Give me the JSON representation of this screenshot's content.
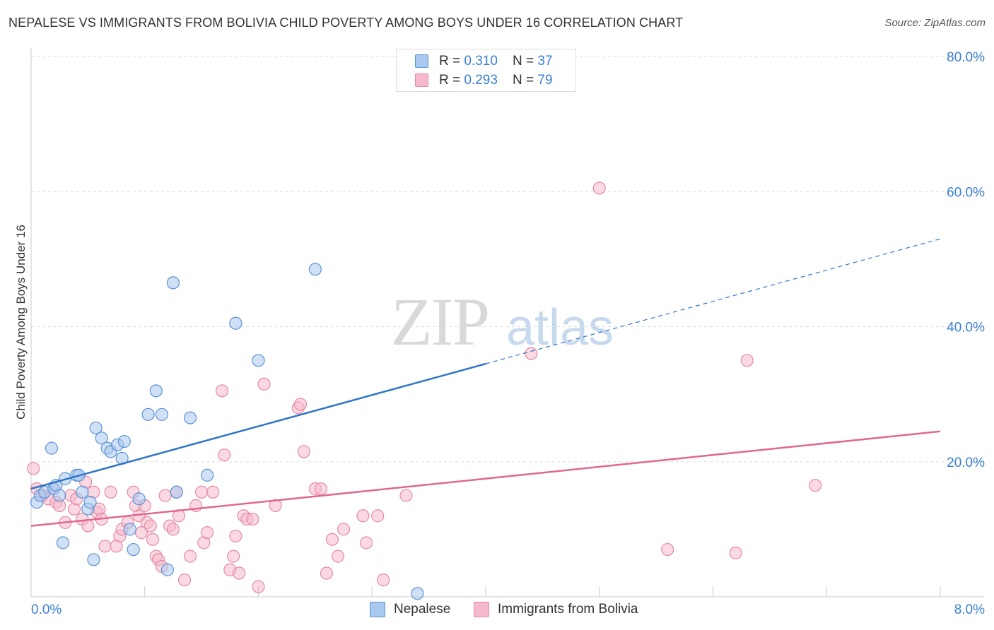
{
  "title": "NEPALESE VS IMMIGRANTS FROM BOLIVIA CHILD POVERTY AMONG BOYS UNDER 16 CORRELATION CHART",
  "source": "Source: ZipAtlas.com",
  "watermark": {
    "part1": "ZIP",
    "part2": "atlas"
  },
  "colors": {
    "blue_fill": "#a9c8ef",
    "blue_stroke": "#5b93d6",
    "blue_line": "#2e74c9",
    "pink_fill": "#f5b9cb",
    "pink_stroke": "#e58aa8",
    "pink_line": "#e0678f",
    "grid": "#dddddd",
    "axis_text": "#3a7fd5"
  },
  "legend_top": [
    {
      "series": "blue",
      "r_label": "R = ",
      "r_value": "0.310",
      "n_label": "N = ",
      "n_value": "37"
    },
    {
      "series": "pink",
      "r_label": "R = ",
      "r_value": "0.293",
      "n_label": "N = ",
      "n_value": "79"
    }
  ],
  "legend_bottom": [
    "Nepalese",
    "Immigrants from Bolivia"
  ],
  "chart_data": {
    "type": "scatter",
    "title": "NEPALESE VS IMMIGRANTS FROM BOLIVIA CHILD POVERTY AMONG BOYS UNDER 16 CORRELATION CHART",
    "xlabel": "",
    "ylabel": "Child Poverty Among Boys Under 16",
    "xlim": [
      0,
      8
    ],
    "ylim": [
      0,
      80
    ],
    "x_tick_labels": [
      {
        "value": 0,
        "label": "0.0%"
      },
      {
        "value": 8,
        "label": "8.0%"
      }
    ],
    "y_tick_labels": [
      {
        "value": 20,
        "label": "20.0%"
      },
      {
        "value": 40,
        "label": "40.0%"
      },
      {
        "value": 60,
        "label": "60.0%"
      },
      {
        "value": 80,
        "label": "80.0%"
      }
    ],
    "grid": true,
    "legend_position": "top-center",
    "series": [
      {
        "name": "Nepalese",
        "color": "blue",
        "R": 0.31,
        "N": 37,
        "trend": {
          "x0": 0,
          "y0": 16.0,
          "x_solid_end": 4.0,
          "x_end": 8.0,
          "y_end": 53.0
        },
        "points": [
          [
            0.05,
            14.0
          ],
          [
            0.08,
            15.0
          ],
          [
            0.12,
            15.5
          ],
          [
            0.18,
            22.0
          ],
          [
            0.2,
            16.0
          ],
          [
            0.22,
            16.5
          ],
          [
            0.25,
            15.0
          ],
          [
            0.28,
            8.0
          ],
          [
            0.3,
            17.5
          ],
          [
            0.4,
            18.0
          ],
          [
            0.42,
            18.0
          ],
          [
            0.45,
            15.5
          ],
          [
            0.5,
            13.0
          ],
          [
            0.52,
            14.0
          ],
          [
            0.55,
            5.5
          ],
          [
            0.57,
            25.0
          ],
          [
            0.62,
            23.5
          ],
          [
            0.67,
            22.0
          ],
          [
            0.7,
            21.5
          ],
          [
            0.76,
            22.5
          ],
          [
            0.8,
            20.5
          ],
          [
            0.82,
            23.0
          ],
          [
            0.87,
            10.0
          ],
          [
            0.9,
            7.0
          ],
          [
            0.95,
            14.5
          ],
          [
            1.03,
            27.0
          ],
          [
            1.1,
            30.5
          ],
          [
            1.15,
            27.0
          ],
          [
            1.2,
            4.0
          ],
          [
            1.25,
            46.5
          ],
          [
            1.28,
            15.5
          ],
          [
            1.4,
            26.5
          ],
          [
            1.55,
            18.0
          ],
          [
            1.8,
            40.5
          ],
          [
            2.0,
            35.0
          ],
          [
            2.5,
            48.5
          ],
          [
            3.4,
            0.5
          ]
        ]
      },
      {
        "name": "Immigrants from Bolivia",
        "color": "pink",
        "R": 0.293,
        "N": 79,
        "trend": {
          "x0": 0,
          "y0": 10.5,
          "x_end": 8.0,
          "y_end": 24.5
        },
        "points": [
          [
            0.02,
            19.0
          ],
          [
            0.05,
            16.0
          ],
          [
            0.1,
            15.0
          ],
          [
            0.15,
            14.5
          ],
          [
            0.2,
            16.0
          ],
          [
            0.22,
            14.0
          ],
          [
            0.25,
            13.5
          ],
          [
            0.3,
            11.0
          ],
          [
            0.35,
            15.0
          ],
          [
            0.38,
            13.0
          ],
          [
            0.4,
            14.5
          ],
          [
            0.45,
            11.5
          ],
          [
            0.48,
            17.0
          ],
          [
            0.5,
            10.5
          ],
          [
            0.55,
            15.5
          ],
          [
            0.58,
            12.5
          ],
          [
            0.6,
            13.0
          ],
          [
            0.62,
            11.5
          ],
          [
            0.65,
            7.5
          ],
          [
            0.7,
            15.5
          ],
          [
            0.75,
            7.5
          ],
          [
            0.78,
            9.0
          ],
          [
            0.8,
            10.0
          ],
          [
            0.85,
            11.0
          ],
          [
            0.9,
            15.5
          ],
          [
            0.92,
            13.5
          ],
          [
            0.95,
            12.0
          ],
          [
            0.97,
            9.5
          ],
          [
            1.0,
            13.5
          ],
          [
            1.02,
            11.0
          ],
          [
            1.05,
            10.5
          ],
          [
            1.07,
            8.5
          ],
          [
            1.1,
            6.0
          ],
          [
            1.12,
            5.5
          ],
          [
            1.15,
            4.5
          ],
          [
            1.18,
            15.0
          ],
          [
            1.22,
            10.5
          ],
          [
            1.25,
            10.0
          ],
          [
            1.28,
            15.5
          ],
          [
            1.3,
            12.0
          ],
          [
            1.35,
            2.5
          ],
          [
            1.4,
            6.0
          ],
          [
            1.45,
            13.5
          ],
          [
            1.5,
            15.5
          ],
          [
            1.52,
            8.0
          ],
          [
            1.55,
            9.5
          ],
          [
            1.6,
            15.5
          ],
          [
            1.68,
            30.5
          ],
          [
            1.7,
            21.0
          ],
          [
            1.75,
            4.0
          ],
          [
            1.78,
            6.0
          ],
          [
            1.8,
            9.0
          ],
          [
            1.83,
            3.5
          ],
          [
            1.87,
            12.0
          ],
          [
            1.9,
            11.5
          ],
          [
            1.95,
            11.5
          ],
          [
            2.0,
            1.5
          ],
          [
            2.05,
            31.5
          ],
          [
            2.15,
            13.5
          ],
          [
            2.35,
            28.0
          ],
          [
            2.37,
            28.5
          ],
          [
            2.4,
            21.5
          ],
          [
            2.5,
            16.0
          ],
          [
            2.55,
            16.0
          ],
          [
            2.6,
            3.5
          ],
          [
            2.65,
            8.5
          ],
          [
            2.7,
            6.0
          ],
          [
            2.75,
            10.0
          ],
          [
            2.92,
            12.0
          ],
          [
            2.95,
            8.0
          ],
          [
            3.05,
            12.0
          ],
          [
            3.1,
            2.5
          ],
          [
            3.3,
            15.0
          ],
          [
            4.4,
            36.0
          ],
          [
            5.0,
            60.5
          ],
          [
            5.6,
            7.0
          ],
          [
            6.2,
            6.5
          ],
          [
            6.3,
            35.0
          ],
          [
            6.9,
            16.5
          ]
        ]
      }
    ]
  }
}
